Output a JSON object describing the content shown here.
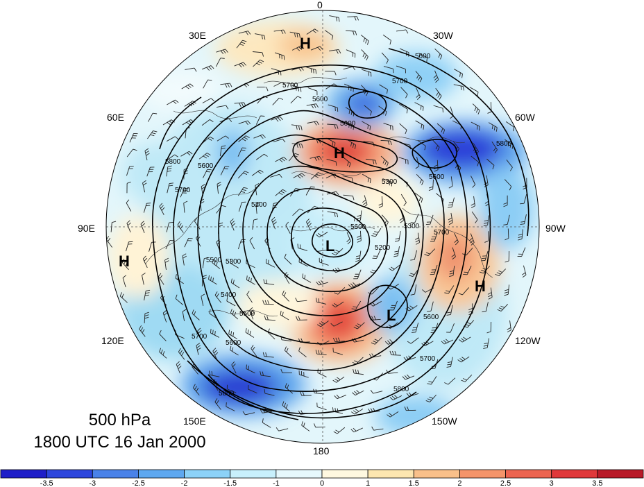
{
  "title": {
    "level": "500 hPa",
    "time": "1800 UTC 16 Jan 2000"
  },
  "longitude_labels": [
    "0",
    "30W",
    "60W",
    "90W",
    "120W",
    "150W",
    "180",
    "150E",
    "120E",
    "90E",
    "60E",
    "30E"
  ],
  "pressure_systems": [
    {
      "type": "H",
      "region": "north-atlantic-top"
    },
    {
      "type": "H",
      "region": "greenland-north"
    },
    {
      "type": "H",
      "region": "central-asia"
    },
    {
      "type": "H",
      "region": "north-america"
    },
    {
      "type": "L",
      "region": "pole"
    },
    {
      "type": "L",
      "region": "north-pacific"
    }
  ],
  "contour_labels": [
    "5600",
    "5700",
    "5600",
    "5600",
    "5700",
    "5800",
    "5300",
    "5200",
    "5500",
    "5300",
    "5400",
    "5600",
    "5700",
    "5800",
    "5600",
    "5700",
    "5800",
    "5300",
    "5700",
    "5600",
    "5700",
    "5600",
    "5200",
    "5600",
    "5500",
    "5800"
  ],
  "colorbar": {
    "colors": [
      "#1e1ec8",
      "#2d46dc",
      "#4a82e8",
      "#5ea8f0",
      "#8cd2f8",
      "#c8f0fc",
      "#e6f8fc",
      "#fff8e0",
      "#fde6b0",
      "#f9c08a",
      "#f4946a",
      "#ec6450",
      "#e0383a",
      "#b81a28"
    ],
    "tick_labels": [
      "-3.5",
      "-3",
      "-2.5",
      "-2",
      "-1.5",
      "-1",
      "0",
      "1",
      "1.5",
      "2",
      "2.5",
      "3",
      "3.5"
    ]
  }
}
